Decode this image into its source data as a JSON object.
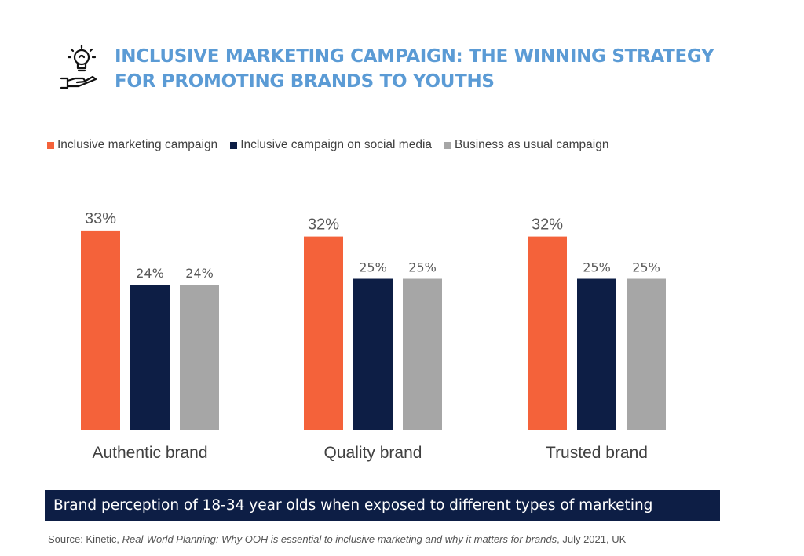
{
  "header": {
    "icon": "lightbulb-hand-icon",
    "title_line1": "INCLUSIVE MARKETING CAMPAIGN: THE WINNING STRATEGY",
    "title_line2": "FOR PROMOTING BRANDS TO YOUTHS"
  },
  "colors": {
    "title": "#5b9bd5",
    "inclusive": "#f4623a",
    "social": "#0d1e45",
    "usual": "#a6a6a6",
    "banner_bg": "#0d1e45"
  },
  "chart_data": {
    "type": "bar",
    "title": "",
    "xlabel": "",
    "ylabel": "",
    "grid": false,
    "legend": "top",
    "ylim": [
      0,
      40
    ],
    "categories": [
      "Authentic brand",
      "Quality brand",
      "Trusted brand"
    ],
    "series": [
      {
        "name": "Inclusive marketing campaign",
        "values": [
          33,
          32,
          32
        ],
        "labels": [
          "33%",
          "32%",
          "32%"
        ]
      },
      {
        "name": "Inclusive campaign on social media",
        "values": [
          24,
          25,
          25
        ],
        "labels": [
          "24%",
          "25%",
          "25%"
        ]
      },
      {
        "name": "Business as usual campaign",
        "values": [
          24,
          25,
          25
        ],
        "labels": [
          "24%",
          "25%",
          "25%"
        ]
      }
    ]
  },
  "banner": {
    "text": "Brand perception of 18-34 year olds when exposed to different types of marketing"
  },
  "source": {
    "prefix": "Source: Kinetic, ",
    "title": "Real-World Planning: Why OOH is essential to inclusive marketing and why it matters for brands",
    "suffix": ", July 2021, UK"
  }
}
